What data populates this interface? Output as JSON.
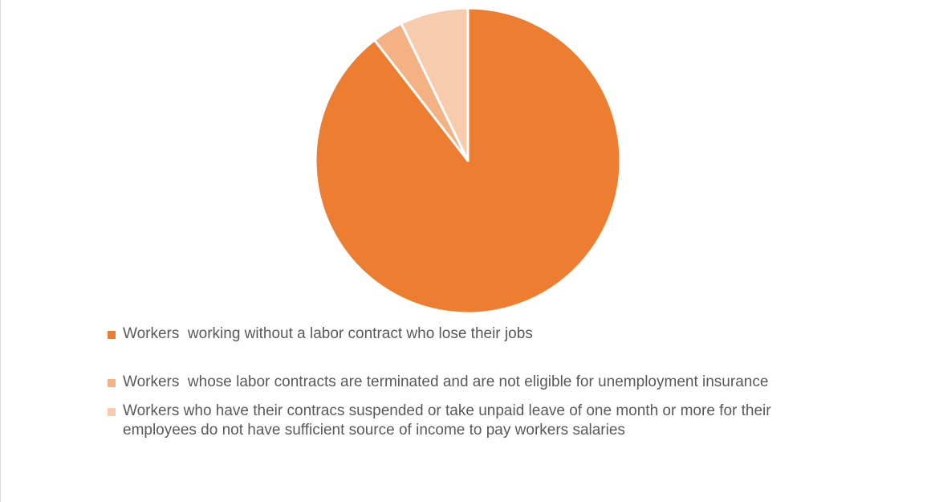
{
  "chart_data": {
    "type": "pie",
    "title": "",
    "legend_position": "bottom",
    "slices": [
      {
        "label": "Workers  working without a labor contract who lose their jobs",
        "value": 89.5,
        "color": "#ED7D31"
      },
      {
        "label": "Workers  whose labor contracts are terminated and are not eligible for unemployment insurance",
        "value": 3.3,
        "color": "#F4B183"
      },
      {
        "label": "Workers who have their contracs suspended or take unpaid leave of one month or more for their employees do not have sufficient source of income to pay workers salaries",
        "value": 7.2,
        "color": "#F8CBAD"
      }
    ]
  }
}
